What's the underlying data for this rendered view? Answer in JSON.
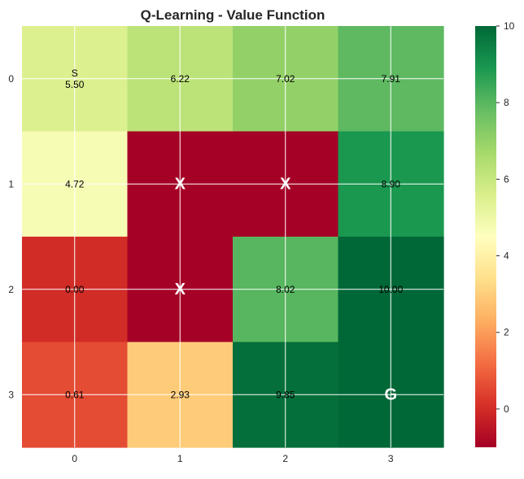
{
  "chart_data": {
    "type": "heatmap",
    "title": "Q-Learning - Value Function",
    "xlabel": "",
    "ylabel": "",
    "x_tick_labels": [
      "0",
      "1",
      "2",
      "3"
    ],
    "y_tick_labels": [
      "0",
      "1",
      "2",
      "3"
    ],
    "values": [
      [
        5.5,
        6.22,
        7.02,
        7.91
      ],
      [
        4.72,
        -1,
        -1,
        8.9
      ],
      [
        0.0,
        -1,
        8.02,
        10.0
      ],
      [
        0.61,
        2.93,
        9.85,
        10.0
      ]
    ],
    "cell_text": [
      [
        "S\n5.50",
        "6.22",
        "7.02",
        "7.91"
      ],
      [
        "4.72",
        "X",
        "X",
        "8.90"
      ],
      [
        "0.00",
        "X",
        "8.02",
        "10.00"
      ],
      [
        "0.61",
        "2.93",
        "9.85",
        "G"
      ]
    ],
    "emphasized_labels": [
      "X",
      "G"
    ],
    "colormap": "RdYlGn",
    "colormap_stops": [
      "#a50026",
      "#d73027",
      "#f46d43",
      "#fdae61",
      "#fee08b",
      "#ffffbf",
      "#d9ef8b",
      "#a6d96a",
      "#66bd63",
      "#1a9850",
      "#006837"
    ],
    "color_range": [
      -1,
      10
    ],
    "colorbar_ticks": [
      0,
      2,
      4,
      6,
      8,
      10
    ],
    "grid": true,
    "grid_color": "#ffffff"
  }
}
